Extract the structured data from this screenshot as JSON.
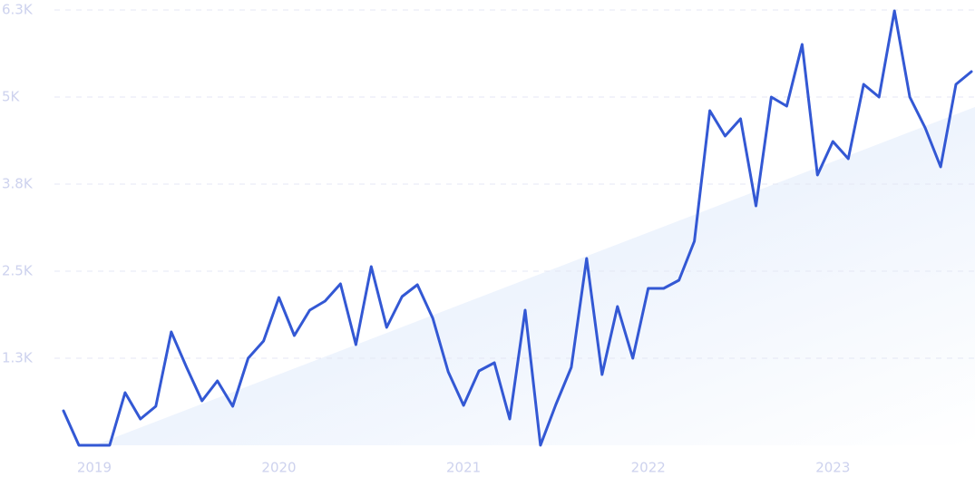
{
  "chart_data": {
    "type": "line",
    "categories": [
      null,
      null,
      "2019",
      null,
      null,
      null,
      null,
      null,
      null,
      null,
      null,
      null,
      null,
      null,
      "2020",
      null,
      null,
      null,
      null,
      null,
      null,
      null,
      null,
      null,
      null,
      null,
      "2021",
      null,
      null,
      null,
      null,
      null,
      null,
      null,
      null,
      null,
      null,
      null,
      "2022",
      null,
      null,
      null,
      null,
      null,
      null,
      null,
      null,
      null,
      null,
      null,
      "2023",
      null,
      null,
      null,
      null,
      null,
      null,
      null,
      null,
      null
    ],
    "values": [
      495,
      0,
      0,
      0,
      755,
      378,
      560,
      1628,
      1120,
      638,
      924,
      560,
      1250,
      1497,
      2122,
      1575,
      1940,
      2070,
      2318,
      1445,
      2565,
      1693,
      2135,
      2305,
      1823,
      1055,
      573,
      1068,
      1185,
      378,
      1940,
      0,
      586,
      1120,
      2682,
      1016,
      1992,
      1250,
      2253,
      2253,
      2370,
      2930,
      4805,
      4440,
      4688,
      3437,
      5000,
      4870,
      5755,
      3880,
      4362,
      4115,
      5182,
      5000,
      6237,
      5000,
      4557,
      3997,
      5182,
      5364
    ],
    "color": "#3358d4",
    "ylim": [
      0,
      6250
    ],
    "yticks": [
      {
        "value": 1250,
        "label": "1.3K"
      },
      {
        "value": 2500,
        "label": "2.5K"
      },
      {
        "value": 3750,
        "label": "3.8K"
      },
      {
        "value": 5000,
        "label": "5K"
      },
      {
        "value": 6250,
        "label": "6.3K"
      }
    ],
    "grid": true
  }
}
